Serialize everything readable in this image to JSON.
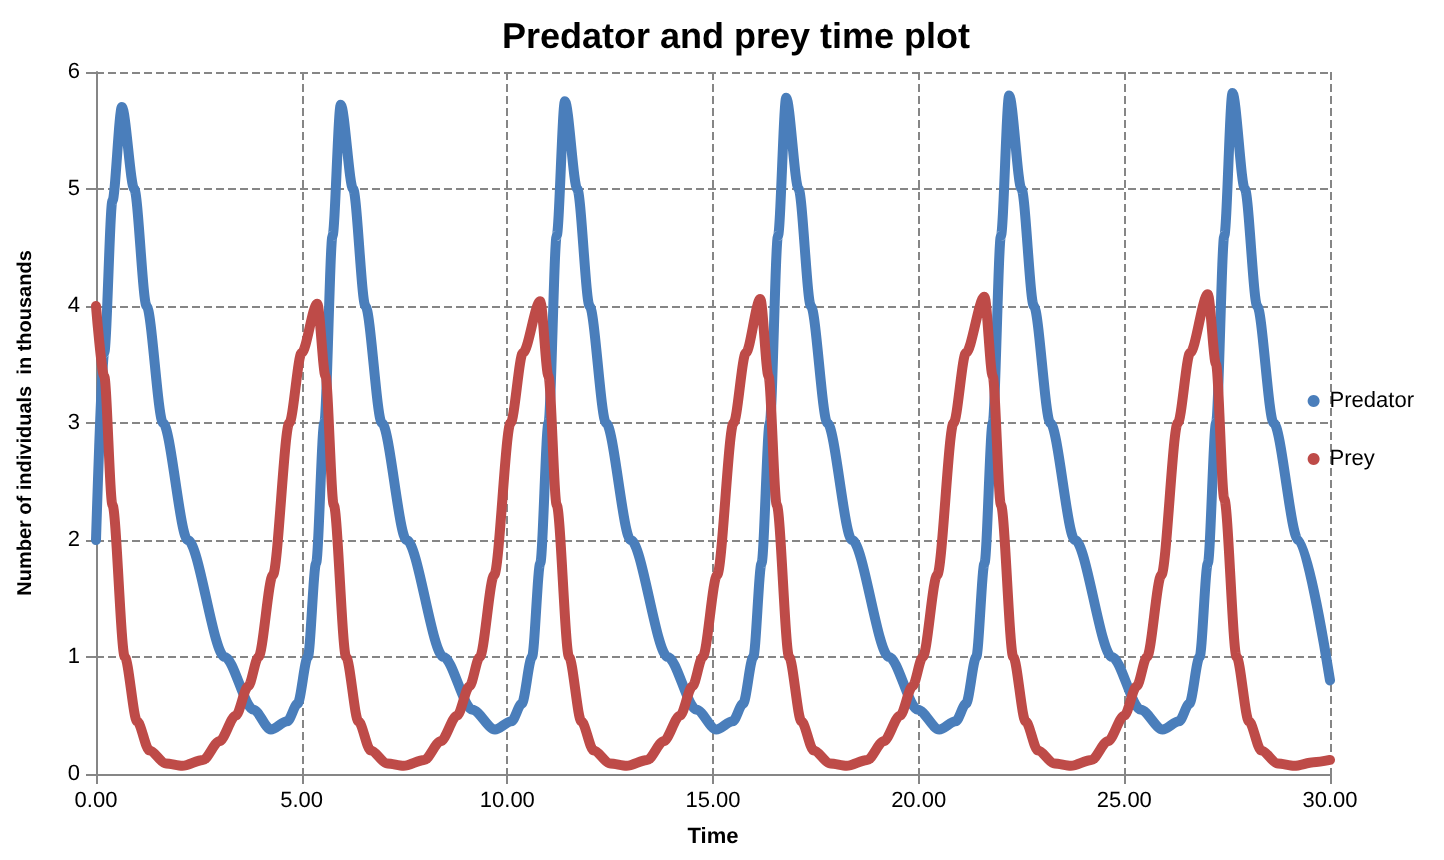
{
  "chart_data": {
    "type": "line",
    "title": "Predator and prey time plot",
    "xlabel": "Time",
    "ylabel": "Number of individuals  in thousands",
    "xlim": [
      0,
      30
    ],
    "xticks": [
      {
        "value": 0,
        "label": "0.00"
      },
      {
        "value": 5,
        "label": "5.00"
      },
      {
        "value": 10,
        "label": "10.00"
      },
      {
        "value": 15,
        "label": "15.00"
      },
      {
        "value": 20,
        "label": "20.00"
      },
      {
        "value": 25,
        "label": "25.00"
      },
      {
        "value": 30,
        "label": "30.00"
      }
    ],
    "ylim": [
      0,
      6
    ],
    "yticks": [
      0,
      1,
      2,
      3,
      4,
      5,
      6
    ],
    "grid": true,
    "legend": "right",
    "marker": "none",
    "line_style": "solid",
    "series": [
      {
        "name": "Predator",
        "color": "#4a7ebb",
        "x": [
          0,
          0.2,
          0.4,
          0.63,
          0.93,
          1.23,
          1.63,
          2.23,
          3.13,
          3.83,
          4.25,
          4.65,
          4.9,
          5.15,
          5.35,
          5.55,
          5.75,
          5.95,
          6.25,
          6.55,
          6.95,
          7.55,
          8.45,
          9.15,
          9.7,
          10.1,
          10.35,
          10.6,
          10.8,
          11.0,
          11.2,
          11.4,
          11.7,
          12.0,
          12.4,
          13.0,
          13.9,
          14.6,
          15.08,
          15.48,
          15.73,
          15.98,
          16.18,
          16.38,
          16.58,
          16.78,
          17.08,
          17.38,
          17.78,
          18.38,
          19.28,
          19.98,
          20.5,
          20.9,
          21.15,
          21.4,
          21.6,
          21.8,
          22.0,
          22.2,
          22.5,
          22.8,
          23.2,
          23.8,
          24.7,
          25.4,
          25.93,
          26.33,
          26.58,
          26.83,
          27.03,
          27.23,
          27.43,
          27.63,
          27.93,
          28.23,
          28.63,
          29.23,
          30.0
        ],
        "values": [
          2.0,
          3.6,
          4.9,
          5.7,
          5.0,
          4.0,
          3.0,
          2.0,
          1.0,
          0.55,
          0.38,
          0.45,
          0.6,
          1.0,
          1.8,
          3.0,
          4.6,
          5.72,
          5.0,
          4.0,
          3.0,
          2.0,
          1.0,
          0.55,
          0.38,
          0.45,
          0.6,
          1.0,
          1.8,
          3.0,
          4.6,
          5.75,
          5.0,
          4.0,
          3.0,
          2.0,
          1.0,
          0.55,
          0.38,
          0.45,
          0.6,
          1.0,
          1.8,
          3.0,
          4.6,
          5.78,
          5.0,
          4.0,
          3.0,
          2.0,
          1.0,
          0.55,
          0.38,
          0.45,
          0.6,
          1.0,
          1.8,
          3.0,
          4.6,
          5.8,
          5.0,
          4.0,
          3.0,
          2.0,
          1.0,
          0.55,
          0.38,
          0.45,
          0.6,
          1.0,
          1.8,
          3.0,
          4.6,
          5.82,
          5.0,
          4.0,
          3.0,
          2.0,
          0.8
        ]
      },
      {
        "name": "Prey",
        "color": "#be4b48",
        "x": [
          0,
          0.2,
          0.4,
          0.7,
          1.0,
          1.3,
          1.7,
          2.1,
          2.6,
          3.0,
          3.4,
          3.7,
          3.95,
          4.3,
          4.7,
          5.0,
          5.38,
          5.58,
          5.78,
          6.08,
          6.38,
          6.68,
          7.08,
          7.48,
          7.98,
          8.38,
          8.78,
          9.08,
          9.33,
          9.68,
          10.08,
          10.38,
          10.8,
          11.0,
          11.2,
          11.5,
          11.8,
          12.1,
          12.5,
          12.9,
          13.4,
          13.8,
          14.2,
          14.5,
          14.75,
          15.1,
          15.5,
          15.8,
          16.15,
          16.35,
          16.55,
          16.85,
          17.15,
          17.45,
          17.85,
          18.25,
          18.75,
          19.15,
          19.55,
          19.85,
          20.1,
          20.45,
          20.85,
          21.15,
          21.6,
          21.8,
          22.0,
          22.3,
          22.6,
          22.9,
          23.3,
          23.7,
          24.2,
          24.6,
          25.0,
          25.3,
          25.55,
          25.9,
          26.3,
          26.6,
          27.03,
          27.23,
          27.43,
          27.73,
          28.03,
          28.33,
          28.73,
          29.13,
          29.6,
          30.0
        ],
        "values": [
          4.0,
          3.4,
          2.3,
          1.0,
          0.45,
          0.2,
          0.09,
          0.07,
          0.12,
          0.28,
          0.5,
          0.75,
          1.0,
          1.7,
          3.0,
          3.6,
          4.02,
          3.4,
          2.3,
          1.0,
          0.45,
          0.2,
          0.09,
          0.07,
          0.12,
          0.28,
          0.5,
          0.75,
          1.0,
          1.7,
          3.0,
          3.6,
          4.04,
          3.4,
          2.3,
          1.0,
          0.45,
          0.2,
          0.09,
          0.07,
          0.12,
          0.28,
          0.5,
          0.75,
          1.0,
          1.7,
          3.0,
          3.6,
          4.06,
          3.4,
          2.3,
          1.0,
          0.45,
          0.2,
          0.09,
          0.07,
          0.12,
          0.28,
          0.5,
          0.75,
          1.0,
          1.7,
          3.0,
          3.6,
          4.08,
          3.4,
          2.3,
          1.0,
          0.45,
          0.2,
          0.09,
          0.07,
          0.12,
          0.28,
          0.5,
          0.75,
          1.0,
          1.7,
          3.0,
          3.6,
          4.1,
          3.5,
          2.35,
          1.0,
          0.45,
          0.2,
          0.09,
          0.07,
          0.1,
          0.12
        ]
      }
    ]
  }
}
